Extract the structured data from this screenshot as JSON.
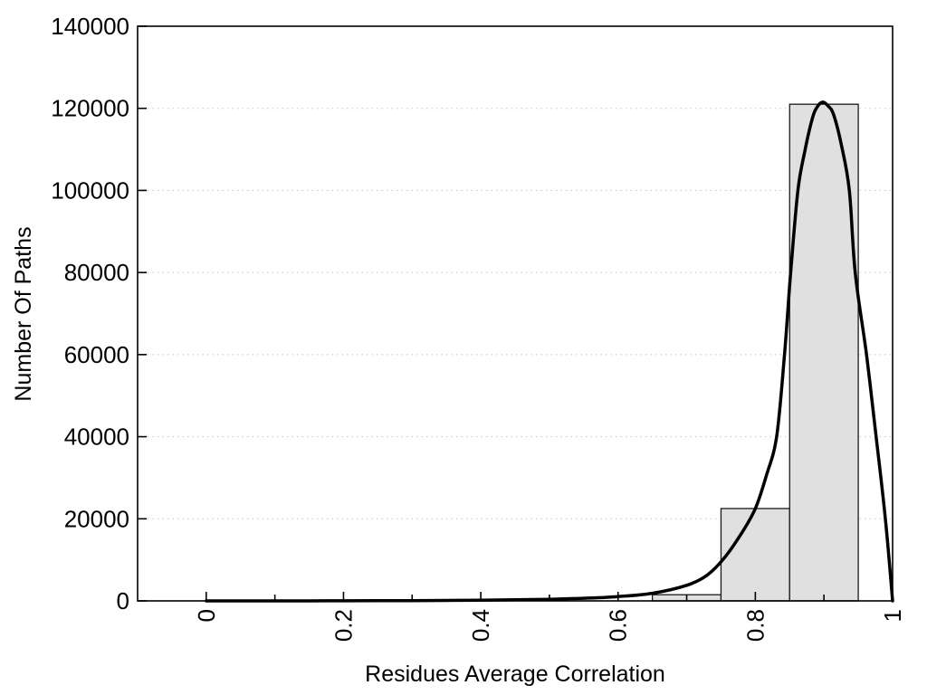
{
  "chart_data": {
    "type": "bar",
    "subtype": "histogram-with-fit-curve",
    "title": "",
    "xlabel": "Residues Average Correlation",
    "ylabel": "Number Of Paths",
    "xlim": [
      -0.1,
      1.0
    ],
    "ylim": [
      0,
      140000
    ],
    "grid": "horizontal-dotted",
    "legend_position": "none",
    "x_major_ticks": [
      0,
      0.2,
      0.4,
      0.6,
      0.8,
      1.0
    ],
    "x_major_tick_labels": [
      "0",
      "0.2",
      "0.4",
      "0.6",
      "0.8",
      "1"
    ],
    "x_minor_ticks": [
      0.1,
      0.3,
      0.5,
      0.7,
      0.9
    ],
    "y_ticks": [
      0,
      20000,
      40000,
      60000,
      80000,
      100000,
      120000,
      140000
    ],
    "y_tick_labels": [
      "0",
      "20000",
      "40000",
      "60000",
      "80000",
      "100000",
      "120000",
      "140000"
    ],
    "bars": {
      "bin_width": 0.1,
      "items": [
        {
          "x0": 0.65,
          "x1": 0.75,
          "value": 1500
        },
        {
          "x0": 0.75,
          "x1": 0.85,
          "value": 22500
        },
        {
          "x0": 0.85,
          "x1": 0.95,
          "value": 121000
        }
      ]
    },
    "curve": {
      "name": "density-fit-curve",
      "peak": {
        "x": 0.9,
        "value": 121500
      },
      "points": [
        [
          0.0,
          0
        ],
        [
          0.05,
          0
        ],
        [
          0.1,
          0
        ],
        [
          0.15,
          10
        ],
        [
          0.2,
          25
        ],
        [
          0.25,
          45
        ],
        [
          0.3,
          75
        ],
        [
          0.35,
          115
        ],
        [
          0.4,
          170
        ],
        [
          0.45,
          260
        ],
        [
          0.5,
          400
        ],
        [
          0.55,
          640
        ],
        [
          0.6,
          1050
        ],
        [
          0.65,
          1850
        ],
        [
          0.7,
          3800
        ],
        [
          0.73,
          6300
        ],
        [
          0.755,
          10500
        ],
        [
          0.78,
          16500
        ],
        [
          0.8,
          22500
        ],
        [
          0.816,
          30500
        ],
        [
          0.831,
          40000
        ],
        [
          0.8425,
          60000
        ],
        [
          0.8515,
          80000
        ],
        [
          0.862,
          100000
        ],
        [
          0.872,
          109500
        ],
        [
          0.883,
          117500
        ],
        [
          0.89,
          120300
        ],
        [
          0.898,
          121500
        ],
        [
          0.906,
          120600
        ],
        [
          0.914,
          118500
        ],
        [
          0.9255,
          111000
        ],
        [
          0.937,
          100000
        ],
        [
          0.9455,
          80000
        ],
        [
          0.962,
          60000
        ],
        [
          0.976,
          40000
        ],
        [
          0.9895,
          20000
        ],
        [
          1.0,
          0
        ]
      ]
    },
    "colors": {
      "bar_fill": "#e0e0e0",
      "bar_border": "#1a1a1a",
      "curve": "#000000",
      "grid": "#c4c4c4",
      "axis": "#000000",
      "text": "#000000",
      "background": "#ffffff"
    }
  }
}
